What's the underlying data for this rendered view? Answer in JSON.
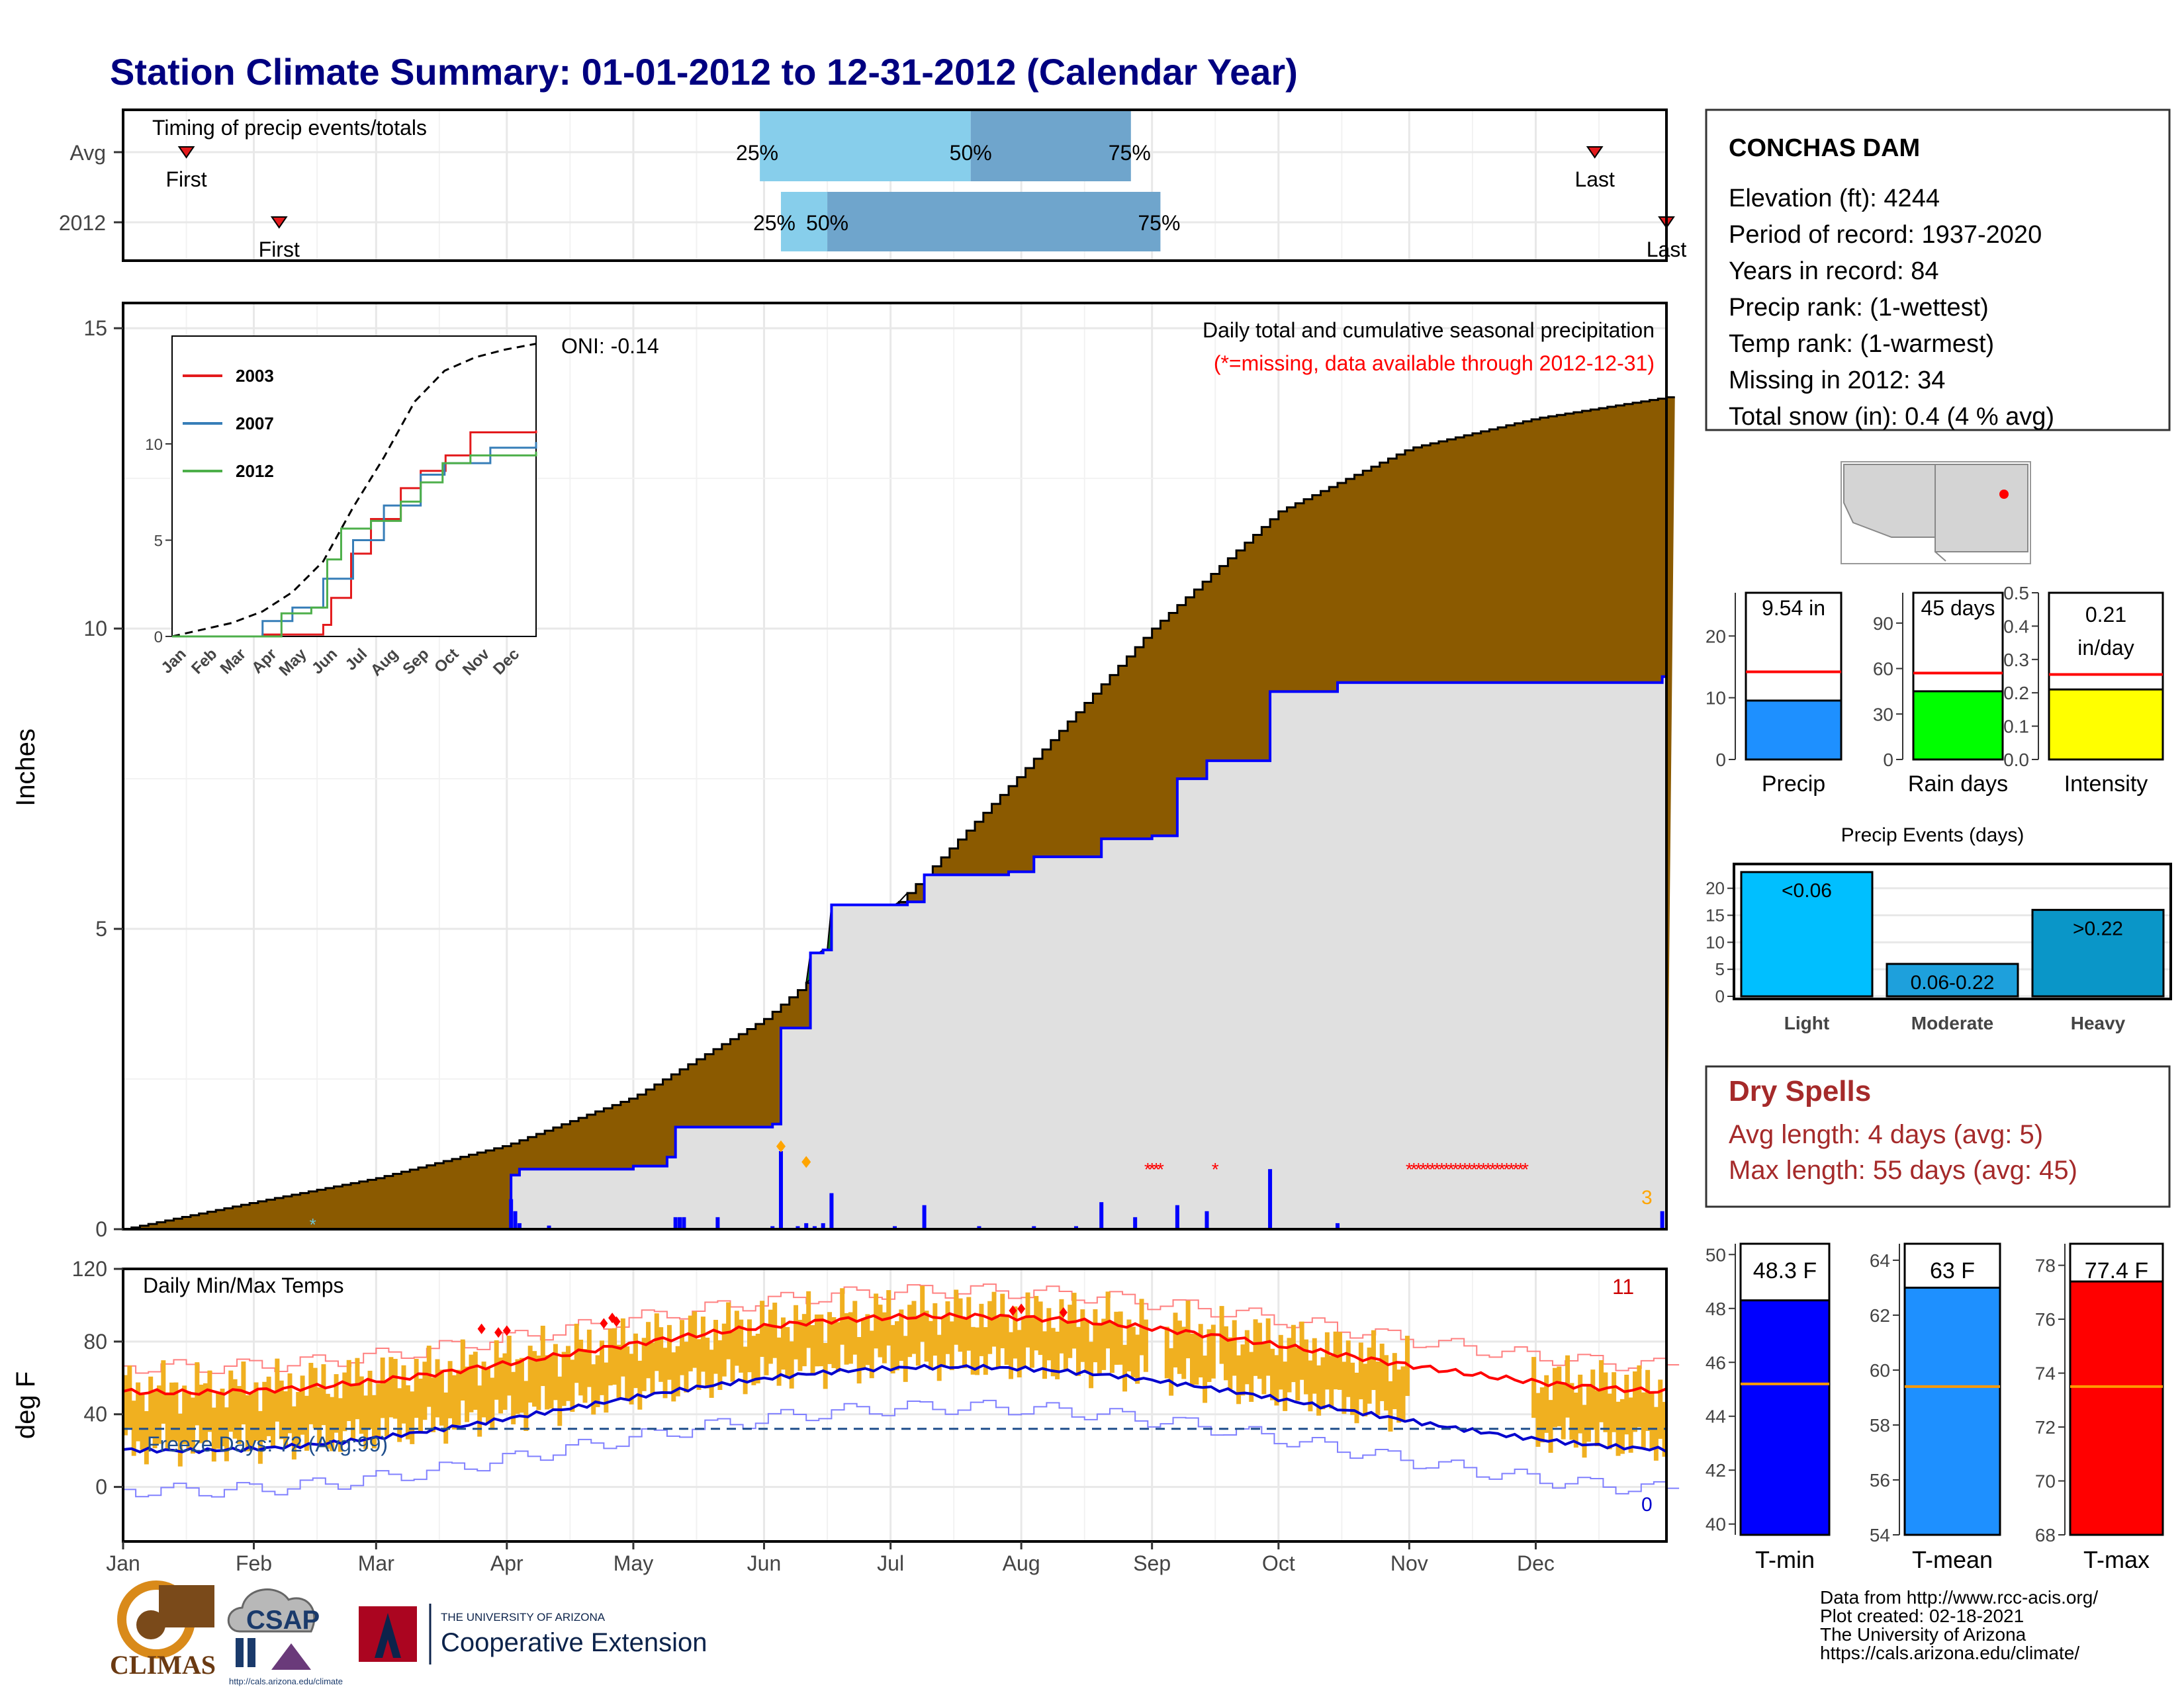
{
  "title": "Station Climate Summary: 01-01-2012 to 12-31-2012 (Calendar Year)",
  "timing": {
    "label": "Timing of precip events/totals",
    "rows": [
      {
        "name": "Avg",
        "first_doy": 15,
        "p25_doy": 151,
        "p50_doy": 201,
        "p75_doy": 239,
        "last_doy": 349
      },
      {
        "name": "2012",
        "first_doy": 37,
        "p25_doy": 156,
        "p50_doy": 167,
        "p75_doy": 246,
        "last_doy": 366
      }
    ],
    "first_label": "First",
    "last_label": "Last",
    "p25_label": "25%",
    "p50_label": "50%",
    "p75_label": "75%",
    "colors": {
      "light": "#87ceeb",
      "dark": "#6fa5cc",
      "marker": "#e31a1c"
    }
  },
  "precip_panel": {
    "ylabel": "Inches",
    "title": "Daily total and cumulative seasonal precipitation",
    "subtitle": "(*=missing, data available through 2012-12-31)",
    "oni": "ONI: -0.14",
    "yticks": [
      "0",
      "5",
      "10",
      "15"
    ],
    "missing_count": "3",
    "colors": {
      "avg_fill": "#8b5a00",
      "above_fill": "#1a7a1a",
      "ytd_fill": "#e0e0e0",
      "ytd_line": "#0000ff",
      "missing": "#ff0000",
      "extreme": "#ffa500"
    }
  },
  "inset": {
    "legend": [
      "2003",
      "2007",
      "2012"
    ],
    "colors": [
      "#e31a1c",
      "#377eb8",
      "#4daf4a"
    ],
    "yticks": [
      "0",
      "5",
      "10"
    ],
    "months": [
      "Jan",
      "Feb",
      "Mar",
      "Apr",
      "May",
      "Jun",
      "Jul",
      "Aug",
      "Sep",
      "Oct",
      "Nov",
      "Dec"
    ]
  },
  "temp_panel": {
    "ylabel": "deg F",
    "title": "Daily Min/Max Temps",
    "freeze": "Freeze Days: 72 (Avg:99)",
    "max_count": "11",
    "min_count": "0",
    "yticks": [
      "0",
      "40",
      "80",
      "120"
    ],
    "colors": {
      "bar": "#f0b020",
      "avg_max": "#ff0000",
      "avg_min": "#0000cd",
      "freeze_line": "#1f4e8c"
    }
  },
  "months": [
    "Jan",
    "Feb",
    "Mar",
    "Apr",
    "May",
    "Jun",
    "Jul",
    "Aug",
    "Sep",
    "Oct",
    "Nov",
    "Dec"
  ],
  "station": {
    "name": "CONCHAS DAM",
    "lines": [
      "Elevation (ft): 4244",
      "Period of record: 1937-2020",
      "Years in record: 84",
      "Precip rank:  (1-wettest)",
      "Temp rank:  (1-warmest)",
      "Missing in 2012: 34",
      "Total snow (in): 0.4 (4 % avg)"
    ]
  },
  "precip_bars": [
    {
      "label": "9.54 in",
      "name": "Precip",
      "value": 9.54,
      "avg": 14.2,
      "ymax": 27,
      "ticks": [
        "0",
        "10",
        "20"
      ],
      "tickvals": [
        0,
        10,
        20
      ],
      "color": "#1e90ff"
    },
    {
      "label": "45 days",
      "name": "Rain days",
      "value": 45,
      "avg": 57,
      "ymax": 110,
      "ticks": [
        "0",
        "30",
        "60",
        "90"
      ],
      "tickvals": [
        0,
        30,
        60,
        90
      ],
      "color": "#00ff00"
    },
    {
      "label1": "0.21",
      "label2": "in/day",
      "name": "Intensity",
      "value": 0.21,
      "avg": 0.255,
      "ymax": 0.5,
      "ticks": [
        "0.0",
        "0.1",
        "0.2",
        "0.3",
        "0.4",
        "0.5"
      ],
      "tickvals": [
        0,
        0.1,
        0.2,
        0.3,
        0.4,
        0.5
      ],
      "color": "#ffff00"
    }
  ],
  "precip_events": {
    "title": "Precip Events (days)",
    "ticks": [
      "0",
      "5",
      "10",
      "15",
      "20"
    ],
    "ymax": 24,
    "categories": [
      "Light",
      "Moderate",
      "Heavy"
    ],
    "labels": [
      "<0.06",
      "0.06-0.22",
      ">0.22"
    ],
    "values": [
      23,
      6,
      16
    ],
    "colors": [
      "#00bfff",
      "#1ea0dc",
      "#0a96c8"
    ]
  },
  "dry_spells": {
    "title": "Dry Spells",
    "avg": "Avg length: 4 days (avg: 5)",
    "max": "Max length: 55 days (avg: 45)"
  },
  "temp_bars": [
    {
      "label": "48.3 F",
      "name": "T-min",
      "value": 48.3,
      "avg": 45.2,
      "ymin": 39.6,
      "ymax": 50.4,
      "ticks": [
        "40",
        "42",
        "44",
        "46",
        "48",
        "50"
      ],
      "tickvals": [
        40,
        42,
        44,
        46,
        48,
        50
      ],
      "color": "#0000ff"
    },
    {
      "label": "63 F",
      "name": "T-mean",
      "value": 63,
      "avg": 59.4,
      "ymin": 54,
      "ymax": 64.6,
      "ticks": [
        "54",
        "56",
        "58",
        "60",
        "62",
        "64"
      ],
      "tickvals": [
        54,
        56,
        58,
        60,
        62,
        64
      ],
      "color": "#1e90ff"
    },
    {
      "label": "77.4 F",
      "name": "T-max",
      "value": 77.4,
      "avg": 73.5,
      "ymin": 68,
      "ymax": 78.8,
      "ticks": [
        "68",
        "70",
        "72",
        "74",
        "76",
        "78"
      ],
      "tickvals": [
        68,
        70,
        72,
        74,
        76,
        78
      ],
      "color": "#ff0000"
    }
  ],
  "credits": [
    "Data from http://www.rcc-acis.org/",
    "Plot created: 02-18-2021",
    "The University of Arizona",
    "https://cals.arizona.edu/climate/"
  ],
  "logos": {
    "climas": "CLIMAS",
    "csap": "CSAP",
    "ua_small": "THE UNIVERSITY OF ARIZONA",
    "ua_big": "Cooperative Extension",
    "csap_url": "http://cals.arizona.edu/climate"
  }
}
